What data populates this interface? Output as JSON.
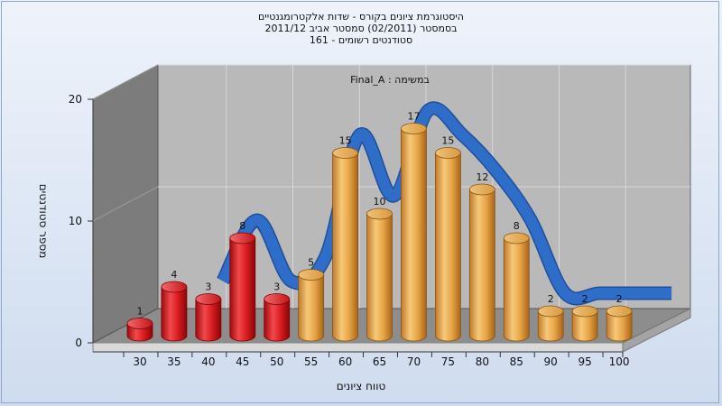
{
  "chart_data": {
    "type": "bar",
    "title_lines": [
      "היסטוגרמת ציונים בקורס - שדות אלקטרומגנטיים",
      "בסמסטר (02/2011) סמסטר אביב 2011/12",
      "סטודנטים רשומים - 161"
    ],
    "subtitle": "במשימה : Final_A",
    "xlabel": "טווח ציונים",
    "ylabel": "מספר סטודנטים",
    "categories": [
      "30",
      "35",
      "40",
      "45",
      "50",
      "55",
      "60",
      "65",
      "70",
      "75",
      "80",
      "85",
      "90",
      "95",
      "100"
    ],
    "values": [
      1,
      4,
      3,
      8,
      3,
      5,
      15,
      10,
      17,
      15,
      12,
      8,
      2,
      2,
      2
    ],
    "failing_categories": [
      "30",
      "35",
      "40",
      "45",
      "50"
    ],
    "ylim": [
      0,
      20
    ],
    "yticks": [
      0,
      10,
      20
    ],
    "grid": true,
    "legend": "none",
    "overlay": "smoothed trend ribbon",
    "colors": {
      "failing": "#e0262a",
      "passing": "#e8a84a",
      "trend": "#2f6ec8",
      "back_wall": "#b7b7b7",
      "side_wall": "#7d7d7d",
      "floor": "#8c8c8c"
    }
  }
}
